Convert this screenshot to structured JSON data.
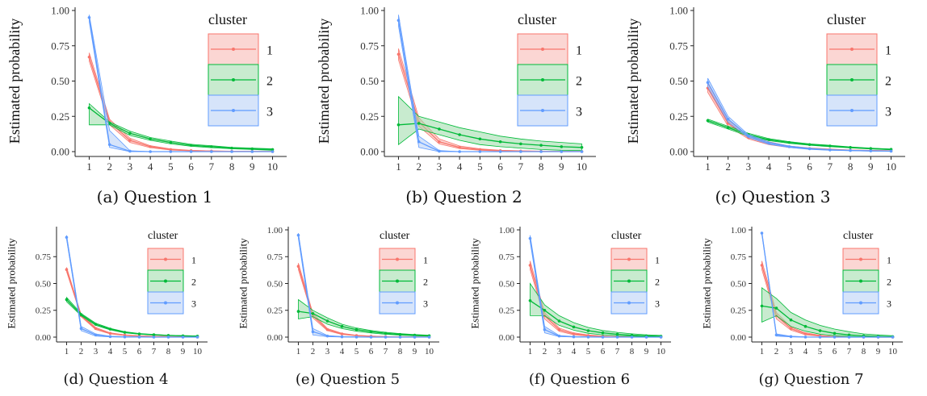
{
  "legend": {
    "title": "cluster",
    "entries": [
      "1",
      "2",
      "3"
    ],
    "colors": {
      "1": "#F8766D",
      "2": "#00BA38",
      "3": "#619CFF"
    },
    "fills": {
      "1": "#F8B4AF",
      "2": "#9ADBA8",
      "3": "#B5CDF5"
    }
  },
  "chart_data": [
    {
      "type": "line",
      "caption": "(a) Question 1",
      "ylabel": "Estimated probability",
      "x": [
        1,
        2,
        3,
        4,
        5,
        6,
        7,
        8,
        9,
        10
      ],
      "ylim": [
        0,
        1
      ],
      "yticks": [
        "0.00",
        "0.25",
        "0.50",
        "0.75",
        "1.00"
      ],
      "series": [
        {
          "name": "1",
          "values": [
            0.67,
            0.21,
            0.08,
            0.035,
            0.015,
            0.007,
            0.004,
            0.002,
            0.001,
            0.001
          ],
          "lower": [
            0.64,
            0.19,
            0.065,
            0.028,
            0.011,
            0.005,
            0.003,
            0.001,
            0,
            0
          ],
          "upper": [
            0.7,
            0.23,
            0.095,
            0.042,
            0.019,
            0.009,
            0.005,
            0.003,
            0.002,
            0.001
          ]
        },
        {
          "name": "2",
          "values": [
            0.31,
            0.2,
            0.13,
            0.09,
            0.065,
            0.045,
            0.035,
            0.025,
            0.02,
            0.015
          ],
          "lower": [
            0.19,
            0.19,
            0.115,
            0.08,
            0.055,
            0.038,
            0.028,
            0.02,
            0.015,
            0.01
          ],
          "upper": [
            0.34,
            0.21,
            0.145,
            0.1,
            0.075,
            0.052,
            0.042,
            0.03,
            0.025,
            0.02
          ]
        },
        {
          "name": "3",
          "values": [
            0.95,
            0.05,
            0.003,
            0,
            0,
            0,
            0,
            0,
            0,
            0
          ],
          "lower": [
            0.92,
            0.03,
            0,
            0,
            0,
            0,
            0,
            0,
            0,
            0
          ],
          "upper": [
            0.97,
            0.15,
            0.006,
            0,
            0,
            0,
            0,
            0,
            0,
            0
          ]
        }
      ]
    },
    {
      "type": "line",
      "caption": "(b) Question 2",
      "ylabel": "Estimated probability",
      "x": [
        1,
        2,
        3,
        4,
        5,
        6,
        7,
        8,
        9,
        10
      ],
      "ylim": [
        0,
        1
      ],
      "yticks": [
        "0.00",
        "0.25",
        "0.50",
        "0.75",
        "1.00"
      ],
      "series": [
        {
          "name": "1",
          "values": [
            0.69,
            0.21,
            0.07,
            0.03,
            0.015,
            0.007,
            0.004,
            0.002,
            0.001,
            0.001
          ],
          "lower": [
            0.65,
            0.18,
            0.055,
            0.022,
            0.01,
            0.004,
            0.002,
            0.001,
            0,
            0
          ],
          "upper": [
            0.73,
            0.24,
            0.09,
            0.04,
            0.02,
            0.01,
            0.006,
            0.003,
            0.002,
            0.001
          ]
        },
        {
          "name": "2",
          "values": [
            0.19,
            0.2,
            0.16,
            0.12,
            0.09,
            0.07,
            0.055,
            0.045,
            0.035,
            0.03
          ],
          "lower": [
            0.05,
            0.16,
            0.12,
            0.08,
            0.05,
            0.035,
            0.025,
            0.015,
            0.01,
            0.008
          ],
          "upper": [
            0.39,
            0.25,
            0.21,
            0.17,
            0.14,
            0.11,
            0.09,
            0.075,
            0.065,
            0.055
          ]
        },
        {
          "name": "3",
          "values": [
            0.93,
            0.07,
            0.003,
            0,
            0,
            0,
            0,
            0,
            0,
            0
          ],
          "lower": [
            0.89,
            0.03,
            0,
            0,
            0,
            0,
            0,
            0,
            0,
            0
          ],
          "upper": [
            0.97,
            0.11,
            0.008,
            0,
            0,
            0,
            0,
            0,
            0,
            0
          ]
        }
      ]
    },
    {
      "type": "line",
      "caption": "(c) Question 3",
      "ylabel": "Estimated probability",
      "x": [
        1,
        2,
        3,
        4,
        5,
        6,
        7,
        8,
        9,
        10
      ],
      "ylim": [
        0,
        1
      ],
      "yticks": [
        "0.00",
        "0.25",
        "0.50",
        "0.75",
        "1.00"
      ],
      "series": [
        {
          "name": "1",
          "values": [
            0.45,
            0.2,
            0.1,
            0.06,
            0.035,
            0.022,
            0.015,
            0.01,
            0.007,
            0.005
          ],
          "lower": [
            0.42,
            0.18,
            0.09,
            0.05,
            0.03,
            0.018,
            0.012,
            0.008,
            0.005,
            0.004
          ],
          "upper": [
            0.48,
            0.22,
            0.11,
            0.07,
            0.04,
            0.026,
            0.018,
            0.012,
            0.009,
            0.007
          ]
        },
        {
          "name": "2",
          "values": [
            0.22,
            0.17,
            0.12,
            0.085,
            0.065,
            0.05,
            0.04,
            0.03,
            0.022,
            0.016
          ],
          "lower": [
            0.21,
            0.16,
            0.11,
            0.078,
            0.059,
            0.045,
            0.035,
            0.026,
            0.019,
            0.013
          ],
          "upper": [
            0.23,
            0.18,
            0.13,
            0.092,
            0.071,
            0.055,
            0.045,
            0.034,
            0.025,
            0.019
          ]
        },
        {
          "name": "3",
          "values": [
            0.49,
            0.23,
            0.11,
            0.06,
            0.035,
            0.02,
            0.012,
            0.008,
            0.005,
            0.003
          ],
          "lower": [
            0.46,
            0.21,
            0.1,
            0.052,
            0.03,
            0.016,
            0.009,
            0.006,
            0.003,
            0.002
          ],
          "upper": [
            0.52,
            0.25,
            0.12,
            0.068,
            0.04,
            0.024,
            0.015,
            0.01,
            0.007,
            0.004
          ]
        }
      ]
    },
    {
      "type": "line",
      "caption": "(d) Question 4",
      "ylabel": "Estimated probability",
      "x": [
        1,
        2,
        3,
        4,
        5,
        6,
        7,
        8,
        9,
        10
      ],
      "ylim": [
        0,
        1
      ],
      "yticks": [
        "0.00",
        "0.25",
        "0.50",
        "0.75"
      ],
      "series": [
        {
          "name": "1",
          "values": [
            0.63,
            0.2,
            0.08,
            0.035,
            0.018,
            0.01,
            0.006,
            0.004,
            0.002,
            0.001
          ],
          "lower": [
            0.61,
            0.19,
            0.07,
            0.03,
            0.015,
            0.008,
            0.005,
            0.003,
            0.001,
            0
          ],
          "upper": [
            0.65,
            0.21,
            0.09,
            0.04,
            0.022,
            0.012,
            0.008,
            0.005,
            0.003,
            0.002
          ]
        },
        {
          "name": "2",
          "values": [
            0.35,
            0.21,
            0.12,
            0.075,
            0.045,
            0.03,
            0.022,
            0.016,
            0.012,
            0.009
          ],
          "lower": [
            0.33,
            0.2,
            0.11,
            0.068,
            0.04,
            0.027,
            0.019,
            0.014,
            0.01,
            0.007
          ],
          "upper": [
            0.37,
            0.22,
            0.13,
            0.082,
            0.05,
            0.034,
            0.025,
            0.018,
            0.014,
            0.011
          ]
        },
        {
          "name": "3",
          "values": [
            0.93,
            0.08,
            0.02,
            0.005,
            0.002,
            0.001,
            0,
            0,
            0,
            0
          ],
          "lower": [
            0.91,
            0.06,
            0.01,
            0.002,
            0,
            0,
            0,
            0,
            0,
            0
          ],
          "upper": [
            0.95,
            0.1,
            0.03,
            0.008,
            0.004,
            0.002,
            0.001,
            0,
            0,
            0
          ]
        }
      ]
    },
    {
      "type": "line",
      "caption": "(e) Question 5",
      "ylabel": "Estimated probability",
      "x": [
        1,
        2,
        3,
        4,
        5,
        6,
        7,
        8,
        9,
        10
      ],
      "ylim": [
        0,
        1
      ],
      "yticks": [
        "0.00",
        "0.25",
        "0.50",
        "0.75",
        "1.00"
      ],
      "series": [
        {
          "name": "1",
          "values": [
            0.66,
            0.2,
            0.07,
            0.03,
            0.015,
            0.008,
            0.004,
            0.002,
            0.001,
            0.001
          ],
          "lower": [
            0.63,
            0.18,
            0.06,
            0.025,
            0.012,
            0.006,
            0.003,
            0.001,
            0,
            0
          ],
          "upper": [
            0.69,
            0.22,
            0.08,
            0.035,
            0.018,
            0.01,
            0.005,
            0.003,
            0.002,
            0.001
          ]
        },
        {
          "name": "2",
          "values": [
            0.24,
            0.22,
            0.15,
            0.1,
            0.07,
            0.05,
            0.035,
            0.025,
            0.018,
            0.013
          ],
          "lower": [
            0.17,
            0.19,
            0.12,
            0.08,
            0.055,
            0.038,
            0.026,
            0.018,
            0.013,
            0.009
          ],
          "upper": [
            0.35,
            0.25,
            0.18,
            0.12,
            0.085,
            0.062,
            0.045,
            0.032,
            0.024,
            0.018
          ]
        },
        {
          "name": "3",
          "values": [
            0.95,
            0.05,
            0.01,
            0.003,
            0.001,
            0,
            0,
            0,
            0,
            0
          ],
          "lower": [
            0.92,
            0.02,
            0.004,
            0.001,
            0,
            0,
            0,
            0,
            0,
            0
          ],
          "upper": [
            0.97,
            0.08,
            0.015,
            0.005,
            0.002,
            0.001,
            0,
            0,
            0,
            0
          ]
        }
      ]
    },
    {
      "type": "line",
      "caption": "(f) Question 6",
      "ylabel": "Estimated probability",
      "x": [
        1,
        2,
        3,
        4,
        5,
        6,
        7,
        8,
        9,
        10
      ],
      "ylim": [
        0,
        1
      ],
      "yticks": [
        "0.00",
        "0.25",
        "0.50",
        "0.75",
        "1.00"
      ],
      "series": [
        {
          "name": "1",
          "values": [
            0.67,
            0.2,
            0.07,
            0.03,
            0.015,
            0.007,
            0.004,
            0.002,
            0.001,
            0.001
          ],
          "lower": [
            0.63,
            0.17,
            0.055,
            0.022,
            0.01,
            0.004,
            0.002,
            0.001,
            0,
            0
          ],
          "upper": [
            0.71,
            0.23,
            0.085,
            0.04,
            0.02,
            0.01,
            0.006,
            0.003,
            0.002,
            0.001
          ]
        },
        {
          "name": "2",
          "values": [
            0.34,
            0.25,
            0.15,
            0.095,
            0.06,
            0.04,
            0.027,
            0.018,
            0.012,
            0.008
          ],
          "lower": [
            0.2,
            0.2,
            0.11,
            0.065,
            0.035,
            0.022,
            0.014,
            0.009,
            0.006,
            0.004
          ],
          "upper": [
            0.5,
            0.3,
            0.2,
            0.135,
            0.09,
            0.062,
            0.044,
            0.031,
            0.022,
            0.016
          ]
        },
        {
          "name": "3",
          "values": [
            0.92,
            0.07,
            0.01,
            0.003,
            0.001,
            0,
            0,
            0,
            0,
            0
          ],
          "lower": [
            0.89,
            0.04,
            0.005,
            0.001,
            0,
            0,
            0,
            0,
            0,
            0
          ],
          "upper": [
            0.95,
            0.1,
            0.015,
            0.005,
            0.002,
            0.001,
            0,
            0,
            0,
            0
          ]
        }
      ]
    },
    {
      "type": "line",
      "caption": "(g) Question 7",
      "ylabel": "Estimated probability",
      "x": [
        1,
        2,
        3,
        4,
        5,
        6,
        7,
        8,
        9,
        10
      ],
      "ylim": [
        0,
        1
      ],
      "yticks": [
        "0.00",
        "0.25",
        "0.50",
        "0.75",
        "1.00"
      ],
      "series": [
        {
          "name": "1",
          "values": [
            0.67,
            0.2,
            0.08,
            0.03,
            0.012,
            0.005,
            0.002,
            0.001,
            0,
            0
          ],
          "lower": [
            0.63,
            0.17,
            0.065,
            0.022,
            0.008,
            0.003,
            0.001,
            0,
            0,
            0
          ],
          "upper": [
            0.71,
            0.23,
            0.095,
            0.04,
            0.017,
            0.007,
            0.003,
            0.002,
            0.001,
            0
          ]
        },
        {
          "name": "2",
          "values": [
            0.29,
            0.27,
            0.16,
            0.1,
            0.06,
            0.035,
            0.02,
            0.012,
            0.007,
            0.004
          ],
          "lower": [
            0.14,
            0.2,
            0.1,
            0.055,
            0.028,
            0.014,
            0.007,
            0.003,
            0.002,
            0.001
          ],
          "upper": [
            0.46,
            0.36,
            0.23,
            0.16,
            0.11,
            0.075,
            0.05,
            0.03,
            0.02,
            0.013
          ]
        },
        {
          "name": "3",
          "values": [
            0.97,
            0.02,
            0.005,
            0.001,
            0,
            0,
            0,
            0,
            0,
            0
          ],
          "lower": [
            0.96,
            0.01,
            0.002,
            0,
            0,
            0,
            0,
            0,
            0,
            0
          ],
          "upper": [
            0.98,
            0.03,
            0.008,
            0.002,
            0,
            0,
            0,
            0,
            0,
            0
          ]
        }
      ]
    }
  ]
}
